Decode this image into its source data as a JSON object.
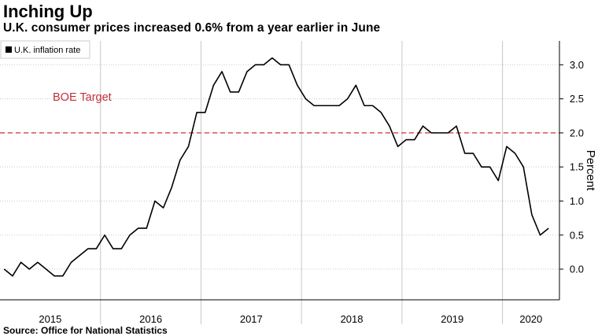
{
  "title": "Inching Up",
  "subtitle": "U.K. consumer prices increased 0.6% from a year earlier in June",
  "source": "Source: Office for National Statistics",
  "colors": {
    "line": "#000000",
    "target": "#d0303a",
    "grid": "#c8c8c8",
    "axis": "#000000"
  },
  "chart_data": {
    "type": "line",
    "title": "Inching Up",
    "subtitle": "U.K. consumer prices increased 0.6% from a year earlier in June",
    "ylabel": "Percent",
    "ylim": [
      -0.45,
      3.35
    ],
    "yticks": [
      "0.0",
      "0.5",
      "1.0",
      "1.5",
      "2.0",
      "2.5",
      "3.0"
    ],
    "xlim": [
      "2015-01",
      "2020-07"
    ],
    "x_tick_labels": [
      "2015",
      "2016",
      "2017",
      "2018",
      "2019",
      "2020"
    ],
    "grid": "horizontal dotted",
    "legend_placement": "top-left",
    "series": [
      {
        "name": "U.K. inflation rate",
        "x": [
          "2015-01",
          "2015-02",
          "2015-03",
          "2015-04",
          "2015-05",
          "2015-06",
          "2015-07",
          "2015-08",
          "2015-09",
          "2015-10",
          "2015-11",
          "2015-12",
          "2016-01",
          "2016-02",
          "2016-03",
          "2016-04",
          "2016-05",
          "2016-06",
          "2016-07",
          "2016-08",
          "2016-09",
          "2016-10",
          "2016-11",
          "2016-12",
          "2017-01",
          "2017-02",
          "2017-03",
          "2017-04",
          "2017-05",
          "2017-06",
          "2017-07",
          "2017-08",
          "2017-09",
          "2017-10",
          "2017-11",
          "2017-12",
          "2018-01",
          "2018-02",
          "2018-03",
          "2018-04",
          "2018-05",
          "2018-06",
          "2018-07",
          "2018-08",
          "2018-09",
          "2018-10",
          "2018-11",
          "2018-12",
          "2019-01",
          "2019-02",
          "2019-03",
          "2019-04",
          "2019-05",
          "2019-06",
          "2019-07",
          "2019-08",
          "2019-09",
          "2019-10",
          "2019-11",
          "2019-12",
          "2020-01",
          "2020-02",
          "2020-03",
          "2020-04",
          "2020-05",
          "2020-06"
        ],
        "values": [
          0.0,
          -0.1,
          0.1,
          0.0,
          0.1,
          0.0,
          -0.1,
          -0.1,
          0.1,
          0.2,
          0.3,
          0.3,
          0.5,
          0.3,
          0.3,
          0.5,
          0.6,
          0.6,
          1.0,
          0.9,
          1.2,
          1.6,
          1.8,
          2.3,
          2.3,
          2.7,
          2.9,
          2.6,
          2.6,
          2.9,
          3.0,
          3.0,
          3.1,
          3.0,
          3.0,
          2.7,
          2.5,
          2.4,
          2.4,
          2.4,
          2.4,
          2.5,
          2.7,
          2.4,
          2.4,
          2.3,
          2.1,
          1.8,
          1.9,
          1.9,
          2.1,
          2.0,
          2.0,
          2.0,
          2.1,
          1.7,
          1.7,
          1.5,
          1.5,
          1.3,
          1.8,
          1.7,
          1.5,
          0.8,
          0.5,
          0.6
        ]
      }
    ],
    "reference_line": {
      "value": 2.0,
      "label": "BOE Target"
    }
  }
}
